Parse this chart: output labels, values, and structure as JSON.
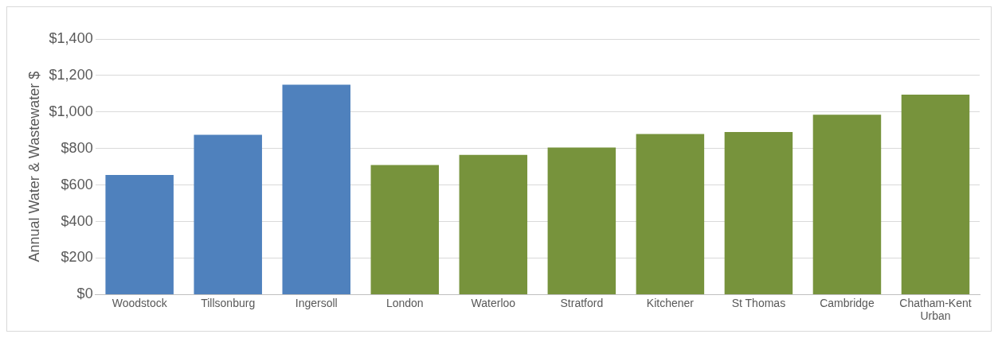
{
  "chart_data": {
    "type": "bar",
    "ylabel": "Annual Water & Wastewater $",
    "categories": [
      "Woodstock",
      "Tillsonburg",
      "Ingersoll",
      "London",
      "Waterloo",
      "Stratford",
      "Kitchener",
      "St Thomas",
      "Cambridge",
      "Chatham-Kent Urban"
    ],
    "values": [
      655,
      875,
      1150,
      710,
      765,
      805,
      880,
      890,
      985,
      1095
    ],
    "colors": [
      "#4f81bd",
      "#4f81bd",
      "#4f81bd",
      "#77933c",
      "#77933c",
      "#77933c",
      "#77933c",
      "#77933c",
      "#77933c",
      "#77933c"
    ],
    "ylim": [
      0,
      1400
    ],
    "yticks": [
      {
        "value": 0,
        "label": "$0"
      },
      {
        "value": 200,
        "label": "$200"
      },
      {
        "value": 400,
        "label": "$400"
      },
      {
        "value": 600,
        "label": "$600"
      },
      {
        "value": 800,
        "label": "$800"
      },
      {
        "value": 1000,
        "label": "$1,000"
      },
      {
        "value": 1200,
        "label": "$1,200"
      },
      {
        "value": 1400,
        "label": "$1,400"
      }
    ],
    "grid": "y",
    "legend": false
  }
}
